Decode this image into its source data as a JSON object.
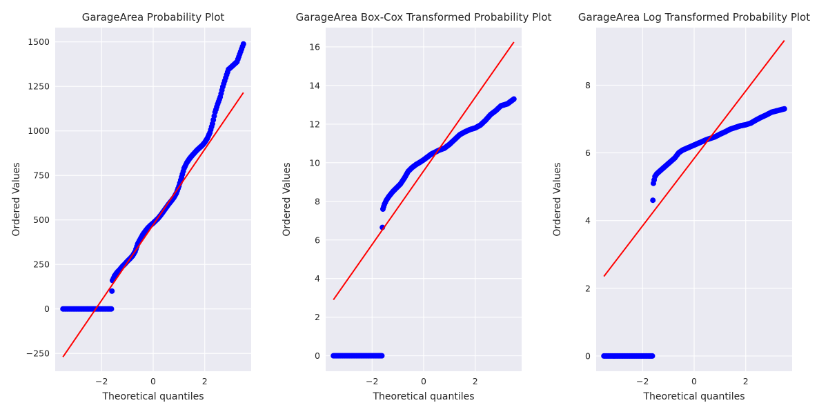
{
  "figure": {
    "background": "#ffffff",
    "panel_background": "#eaeaf2",
    "point_color": "#0000ff",
    "line_color": "#ff0000"
  },
  "chart_data": [
    {
      "type": "scatter",
      "title": "GarageArea Probability Plot",
      "xlabel": "Theoretical quantiles",
      "ylabel": "Ordered Values",
      "xlim": [
        -3.8,
        3.8
      ],
      "ylim": [
        -350,
        1580
      ],
      "xticks": [
        -2,
        0,
        2
      ],
      "yticks": [
        -250,
        0,
        250,
        500,
        750,
        1000,
        1250,
        1500
      ],
      "xtick_labels": [
        "−2",
        "0",
        "2"
      ],
      "ytick_labels": [
        "−250",
        "0",
        "250",
        "500",
        "750",
        "1000",
        "1250",
        "1500"
      ],
      "grid": true,
      "fit_line": {
        "x": [
          -3.5,
          3.5
        ],
        "y": [
          -270,
          1215
        ]
      },
      "points": [
        [
          -3.5,
          0
        ],
        [
          -3.3,
          0
        ],
        [
          -3.1,
          0
        ],
        [
          -2.95,
          0
        ],
        [
          -2.8,
          0
        ],
        [
          -2.65,
          0
        ],
        [
          -2.5,
          0
        ],
        [
          -2.35,
          0
        ],
        [
          -2.2,
          0
        ],
        [
          -2.05,
          0
        ],
        [
          -1.9,
          0
        ],
        [
          -1.75,
          0
        ],
        [
          -1.62,
          0
        ],
        [
          -1.6,
          100
        ],
        [
          -1.58,
          160
        ],
        [
          -1.5,
          185
        ],
        [
          -1.4,
          205
        ],
        [
          -1.3,
          220
        ],
        [
          -1.2,
          238
        ],
        [
          -1.1,
          252
        ],
        [
          -1.0,
          268
        ],
        [
          -0.9,
          282
        ],
        [
          -0.8,
          298
        ],
        [
          -0.7,
          322
        ],
        [
          -0.6,
          365
        ],
        [
          -0.5,
          392
        ],
        [
          -0.4,
          418
        ],
        [
          -0.3,
          438
        ],
        [
          -0.2,
          456
        ],
        [
          -0.1,
          470
        ],
        [
          0.0,
          482
        ],
        [
          0.1,
          496
        ],
        [
          0.2,
          510
        ],
        [
          0.3,
          528
        ],
        [
          0.4,
          548
        ],
        [
          0.5,
          568
        ],
        [
          0.6,
          588
        ],
        [
          0.7,
          606
        ],
        [
          0.8,
          625
        ],
        [
          0.9,
          650
        ],
        [
          1.0,
          690
        ],
        [
          1.1,
          740
        ],
        [
          1.2,
          790
        ],
        [
          1.3,
          820
        ],
        [
          1.4,
          842
        ],
        [
          1.5,
          860
        ],
        [
          1.6,
          876
        ],
        [
          1.7,
          892
        ],
        [
          1.8,
          905
        ],
        [
          1.9,
          918
        ],
        [
          2.0,
          935
        ],
        [
          2.1,
          958
        ],
        [
          2.2,
          990
        ],
        [
          2.3,
          1040
        ],
        [
          2.4,
          1105
        ],
        [
          2.5,
          1150
        ],
        [
          2.6,
          1190
        ],
        [
          2.7,
          1248
        ],
        [
          2.85,
          1315
        ],
        [
          2.92,
          1345
        ],
        [
          3.0,
          1355
        ],
        [
          3.25,
          1388
        ],
        [
          3.5,
          1488
        ]
      ]
    },
    {
      "type": "scatter",
      "title": "GarageArea Box-Cox Transformed Probability Plot",
      "xlabel": "Theoretical quantiles",
      "ylabel": "Ordered Values",
      "xlim": [
        -3.8,
        3.8
      ],
      "ylim": [
        -0.8,
        17.0
      ],
      "xticks": [
        -2,
        0,
        2
      ],
      "yticks": [
        0,
        2,
        4,
        6,
        8,
        10,
        12,
        14,
        16
      ],
      "xtick_labels": [
        "−2",
        "0",
        "2"
      ],
      "ytick_labels": [
        "0",
        "2",
        "4",
        "6",
        "8",
        "10",
        "12",
        "14",
        "16"
      ],
      "grid": true,
      "fit_line": {
        "x": [
          -3.5,
          3.5
        ],
        "y": [
          2.9,
          16.25
        ]
      },
      "points": [
        [
          -3.5,
          0
        ],
        [
          -3.3,
          0
        ],
        [
          -3.1,
          0
        ],
        [
          -2.95,
          0
        ],
        [
          -2.8,
          0
        ],
        [
          -2.65,
          0
        ],
        [
          -2.5,
          0
        ],
        [
          -2.35,
          0
        ],
        [
          -2.2,
          0
        ],
        [
          -2.05,
          0
        ],
        [
          -1.9,
          0
        ],
        [
          -1.75,
          0
        ],
        [
          -1.62,
          0
        ],
        [
          -1.6,
          6.65
        ],
        [
          -1.58,
          7.6
        ],
        [
          -1.52,
          7.85
        ],
        [
          -1.45,
          8.05
        ],
        [
          -1.35,
          8.25
        ],
        [
          -1.2,
          8.5
        ],
        [
          -1.05,
          8.7
        ],
        [
          -0.9,
          8.9
        ],
        [
          -0.75,
          9.2
        ],
        [
          -0.6,
          9.55
        ],
        [
          -0.45,
          9.75
        ],
        [
          -0.3,
          9.9
        ],
        [
          -0.15,
          10.02
        ],
        [
          0.0,
          10.15
        ],
        [
          0.15,
          10.3
        ],
        [
          0.3,
          10.45
        ],
        [
          0.45,
          10.55
        ],
        [
          0.6,
          10.65
        ],
        [
          0.8,
          10.75
        ],
        [
          1.0,
          10.95
        ],
        [
          1.2,
          11.2
        ],
        [
          1.4,
          11.45
        ],
        [
          1.6,
          11.6
        ],
        [
          1.8,
          11.72
        ],
        [
          2.0,
          11.8
        ],
        [
          2.2,
          11.95
        ],
        [
          2.4,
          12.2
        ],
        [
          2.6,
          12.5
        ],
        [
          2.8,
          12.7
        ],
        [
          3.0,
          12.95
        ],
        [
          3.25,
          13.05
        ],
        [
          3.5,
          13.3
        ]
      ]
    },
    {
      "type": "scatter",
      "title": "GarageArea Log Transformed Probability Plot",
      "xlabel": "Theoretical quantiles",
      "ylabel": "Ordered Values",
      "xlim": [
        -3.8,
        3.8
      ],
      "ylim": [
        -0.45,
        9.7
      ],
      "xticks": [
        -2,
        0,
        2
      ],
      "yticks": [
        0,
        2,
        4,
        6,
        8
      ],
      "xtick_labels": [
        "−2",
        "0",
        "2"
      ],
      "ytick_labels": [
        "0",
        "2",
        "4",
        "6",
        "8"
      ],
      "grid": true,
      "fit_line": {
        "x": [
          -3.5,
          3.5
        ],
        "y": [
          2.35,
          9.32
        ]
      },
      "points": [
        [
          -3.5,
          0
        ],
        [
          -3.3,
          0
        ],
        [
          -3.1,
          0
        ],
        [
          -2.95,
          0
        ],
        [
          -2.8,
          0
        ],
        [
          -2.65,
          0
        ],
        [
          -2.5,
          0
        ],
        [
          -2.35,
          0
        ],
        [
          -2.2,
          0
        ],
        [
          -2.05,
          0
        ],
        [
          -1.9,
          0
        ],
        [
          -1.75,
          0
        ],
        [
          -1.62,
          0
        ],
        [
          -1.6,
          4.6
        ],
        [
          -1.58,
          5.1
        ],
        [
          -1.52,
          5.3
        ],
        [
          -1.45,
          5.38
        ],
        [
          -1.35,
          5.45
        ],
        [
          -1.2,
          5.55
        ],
        [
          -1.05,
          5.65
        ],
        [
          -0.9,
          5.75
        ],
        [
          -0.75,
          5.85
        ],
        [
          -0.6,
          6.0
        ],
        [
          -0.45,
          6.08
        ],
        [
          -0.3,
          6.13
        ],
        [
          -0.15,
          6.18
        ],
        [
          0.0,
          6.23
        ],
        [
          0.15,
          6.28
        ],
        [
          0.3,
          6.33
        ],
        [
          0.45,
          6.38
        ],
        [
          0.6,
          6.42
        ],
        [
          0.8,
          6.47
        ],
        [
          1.0,
          6.55
        ],
        [
          1.2,
          6.62
        ],
        [
          1.4,
          6.7
        ],
        [
          1.6,
          6.75
        ],
        [
          1.8,
          6.8
        ],
        [
          2.0,
          6.83
        ],
        [
          2.2,
          6.88
        ],
        [
          2.4,
          6.97
        ],
        [
          2.6,
          7.05
        ],
        [
          2.8,
          7.12
        ],
        [
          3.0,
          7.2
        ],
        [
          3.25,
          7.25
        ],
        [
          3.5,
          7.3
        ]
      ]
    }
  ]
}
